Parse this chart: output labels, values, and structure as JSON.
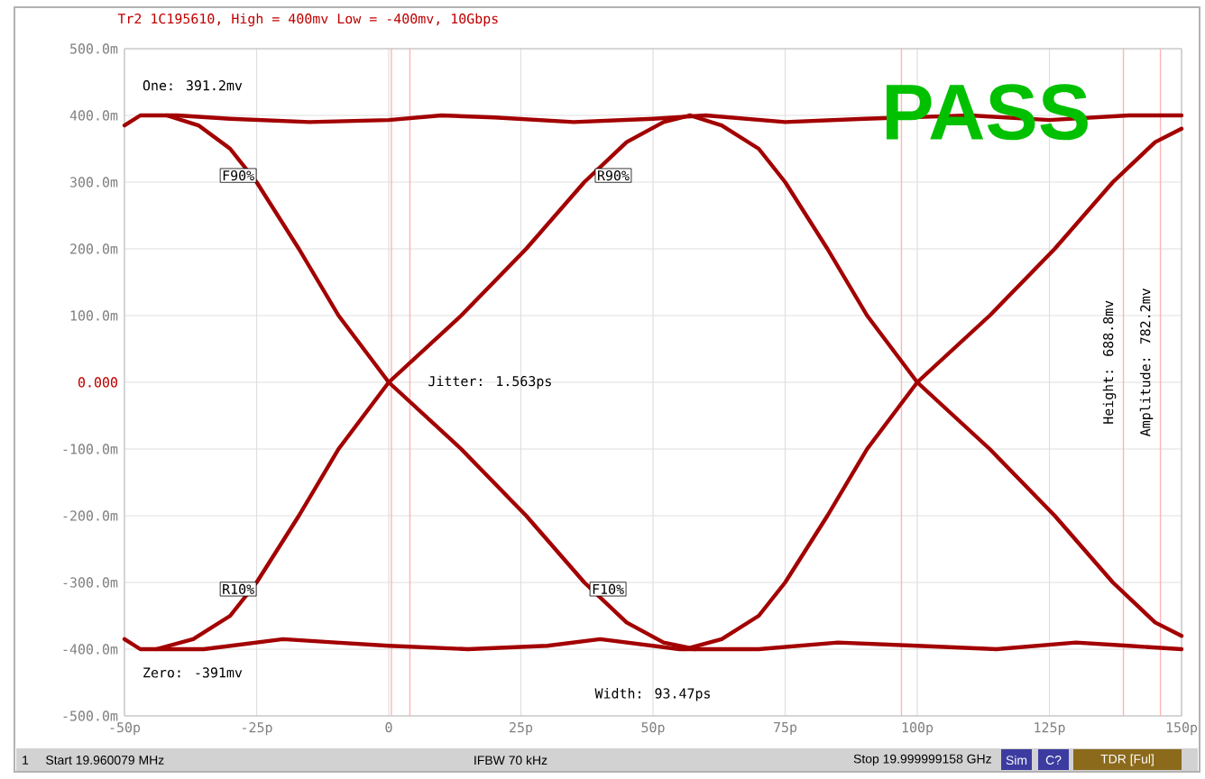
{
  "chart_data": {
    "type": "line",
    "title": "Tr2 1C195610, High = 400mv Low = -400mv, 10Gbps",
    "xlim": [
      -50,
      150
    ],
    "xticks": [
      {
        "value": -50,
        "label": "-50p"
      },
      {
        "value": -25,
        "label": "-25p"
      },
      0,
      {
        "value": 25,
        "label": "25p"
      },
      {
        "value": 50,
        "label": "50p"
      },
      {
        "value": 75,
        "label": "75p"
      },
      {
        "value": 100,
        "label": "100p"
      },
      {
        "value": 125,
        "label": "125p"
      },
      {
        "value": 150,
        "label": "150p"
      }
    ],
    "ylim": [
      -500,
      500
    ],
    "yticks": [
      {
        "value": 500,
        "label": "500.0m"
      },
      {
        "value": 400,
        "label": "400.0m"
      },
      {
        "value": 300,
        "label": "300.0m"
      },
      {
        "value": 200,
        "label": "200.0m"
      },
      {
        "value": 100,
        "label": "100.0m"
      },
      {
        "value": 0,
        "label": "0.000"
      },
      {
        "value": -100,
        "label": "-100.0m"
      },
      {
        "value": -200,
        "label": "-200.0m"
      },
      {
        "value": -300,
        "label": "-300.0m"
      },
      {
        "value": -400,
        "label": "-400.0m"
      },
      {
        "value": -500,
        "label": "-500.0m"
      }
    ],
    "grid": true,
    "marker": "none",
    "line_style": "solid",
    "series": [
      {
        "color": "#a30000",
        "x": [
          -50,
          -47,
          -40,
          -30,
          -15,
          0,
          10,
          20,
          35,
          50,
          60,
          75,
          90,
          110,
          125,
          140,
          150
        ],
        "values": [
          385,
          400,
          400,
          395,
          390,
          393,
          400,
          397,
          390,
          395,
          400,
          390,
          395,
          400,
          393,
          400,
          400
        ]
      },
      {
        "color": "#a30000",
        "x": [
          -50,
          -47,
          -35,
          -20,
          -10,
          0,
          15,
          30,
          40,
          55,
          70,
          85,
          100,
          115,
          130,
          140,
          150
        ],
        "values": [
          -385,
          -400,
          -400,
          -385,
          -390,
          -395,
          -400,
          -395,
          -385,
          -400,
          -400,
          -390,
          -395,
          -400,
          -390,
          -395,
          -400
        ]
      },
      {
        "color": "#a30000",
        "x": [
          -42,
          -36,
          -30,
          -25,
          -17,
          -9.5,
          0,
          13.7,
          26,
          37,
          45,
          52,
          58
        ],
        "values": [
          400,
          385,
          350,
          300,
          200,
          100,
          0,
          -100,
          -200,
          -300,
          -360,
          -390,
          -400
        ]
      },
      {
        "color": "#a30000",
        "x": [
          -44,
          -37,
          -30,
          -25,
          -17,
          -9.5,
          0,
          13.7,
          26,
          37,
          45,
          52,
          57
        ],
        "values": [
          -400,
          -385,
          -350,
          -300,
          -200,
          -100,
          0,
          100,
          200,
          300,
          360,
          390,
          400
        ]
      },
      {
        "color": "#a30000",
        "x": [
          57,
          63,
          70,
          75,
          83,
          90.5,
          100,
          113.7,
          126,
          137,
          145,
          150
        ],
        "values": [
          400,
          385,
          350,
          300,
          200,
          100,
          0,
          -100,
          -200,
          -300,
          -360,
          -380
        ]
      },
      {
        "color": "#a30000",
        "x": [
          56,
          63,
          70,
          75,
          83,
          90.5,
          100,
          113.7,
          126,
          137,
          145,
          150
        ],
        "values": [
          -400,
          -385,
          -350,
          -300,
          -200,
          -100,
          0,
          100,
          200,
          300,
          360,
          380
        ]
      }
    ],
    "ref_lines": [
      {
        "axis": "x",
        "value": 0.5,
        "color": "#ffb4b4"
      },
      {
        "axis": "x",
        "value": 4,
        "color": "#ffb4b4"
      },
      {
        "axis": "x",
        "value": 97,
        "color": "#ffb4b4"
      },
      {
        "axis": "x",
        "value": 139,
        "color": "#ffb4b4"
      },
      {
        "axis": "x",
        "value": 146,
        "color": "#ffb4b4"
      }
    ],
    "annotations": [
      "One: 391.2mv",
      "Zero: -391mv",
      "Jitter: 1.563ps",
      "Width: 93.47ps",
      "Height: 688.8mv",
      "Amplitude: 782.2mv",
      "PASS",
      {
        "text": "F90%",
        "x": -25,
        "y": 310
      },
      {
        "text": "R90%",
        "x": 39,
        "y": 310
      },
      {
        "text": "R10%",
        "x": -25,
        "y": -310
      },
      {
        "text": "F10%",
        "x": 38,
        "y": -310
      },
      "1",
      "Start 19.960079 MHz",
      "IFBW 70 kHz",
      "Stop 19.999999158 GHz",
      "Sim",
      "C?",
      "TDR [Ful]"
    ]
  }
}
